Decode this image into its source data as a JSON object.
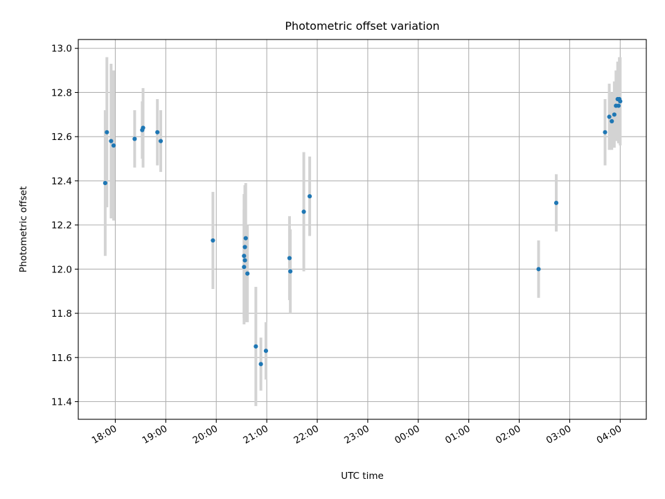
{
  "chart_data": {
    "type": "scatter",
    "title": "Photometric offset variation",
    "xlabel": "UTC time",
    "ylabel": "Photometric offset",
    "x_tick_labels": [
      "18:00",
      "19:00",
      "20:00",
      "21:00",
      "22:00",
      "23:00",
      "00:00",
      "01:00",
      "02:00",
      "03:00",
      "04:00"
    ],
    "y_tick_labels": [
      "11.4",
      "11.6",
      "11.8",
      "12.0",
      "12.2",
      "12.4",
      "12.6",
      "12.8",
      "13.0"
    ],
    "xlim": [
      "17:16",
      "04:31"
    ],
    "ylim": [
      11.32,
      13.04
    ],
    "grid": true,
    "colors": {
      "point": "#1f77b4",
      "errorbar": "#d3d3d3",
      "grid": "#b0b0b0"
    },
    "points": [
      {
        "x": "17:48",
        "y": 12.39,
        "err": 0.33
      },
      {
        "x": "17:50",
        "y": 12.62,
        "err": 0.34
      },
      {
        "x": "17:55",
        "y": 12.58,
        "err": 0.35
      },
      {
        "x": "17:58",
        "y": 12.56,
        "err": 0.34
      },
      {
        "x": "18:23",
        "y": 12.59,
        "err": 0.13
      },
      {
        "x": "18:32",
        "y": 12.63,
        "err": 0.13
      },
      {
        "x": "18:33",
        "y": 12.64,
        "err": 0.18
      },
      {
        "x": "18:50",
        "y": 12.62,
        "err": 0.15
      },
      {
        "x": "18:54",
        "y": 12.58,
        "err": 0.14
      },
      {
        "x": "19:56",
        "y": 12.13,
        "err": 0.22
      },
      {
        "x": "20:33",
        "y": 12.06,
        "err": 0.28
      },
      {
        "x": "20:33",
        "y": 12.01,
        "err": 0.26
      },
      {
        "x": "20:34",
        "y": 12.1,
        "err": 0.28
      },
      {
        "x": "20:34",
        "y": 12.04,
        "err": 0.28
      },
      {
        "x": "20:35",
        "y": 12.14,
        "err": 0.25
      },
      {
        "x": "20:37",
        "y": 11.98,
        "err": 0.22
      },
      {
        "x": "20:47",
        "y": 11.65,
        "err": 0.27
      },
      {
        "x": "20:53",
        "y": 11.57,
        "err": 0.12
      },
      {
        "x": "20:59",
        "y": 11.63,
        "err": 0.13
      },
      {
        "x": "21:27",
        "y": 12.05,
        "err": 0.19
      },
      {
        "x": "21:28",
        "y": 11.99,
        "err": 0.19
      },
      {
        "x": "21:44",
        "y": 12.26,
        "err": 0.27
      },
      {
        "x": "21:51",
        "y": 12.33,
        "err": 0.18
      },
      {
        "x": "02:23",
        "y": 12.0,
        "err": 0.13
      },
      {
        "x": "02:44",
        "y": 12.3,
        "err": 0.13
      },
      {
        "x": "03:42",
        "y": 12.62,
        "err": 0.15
      },
      {
        "x": "03:47",
        "y": 12.69,
        "err": 0.15
      },
      {
        "x": "03:50",
        "y": 12.67,
        "err": 0.13
      },
      {
        "x": "03:53",
        "y": 12.7,
        "err": 0.15
      },
      {
        "x": "03:55",
        "y": 12.74,
        "err": 0.16
      },
      {
        "x": "03:57",
        "y": 12.77,
        "err": 0.17
      },
      {
        "x": "03:58",
        "y": 12.74,
        "err": 0.17
      },
      {
        "x": "03:59",
        "y": 12.77,
        "err": 0.19
      },
      {
        "x": "04:00",
        "y": 12.76,
        "err": 0.2
      }
    ]
  }
}
